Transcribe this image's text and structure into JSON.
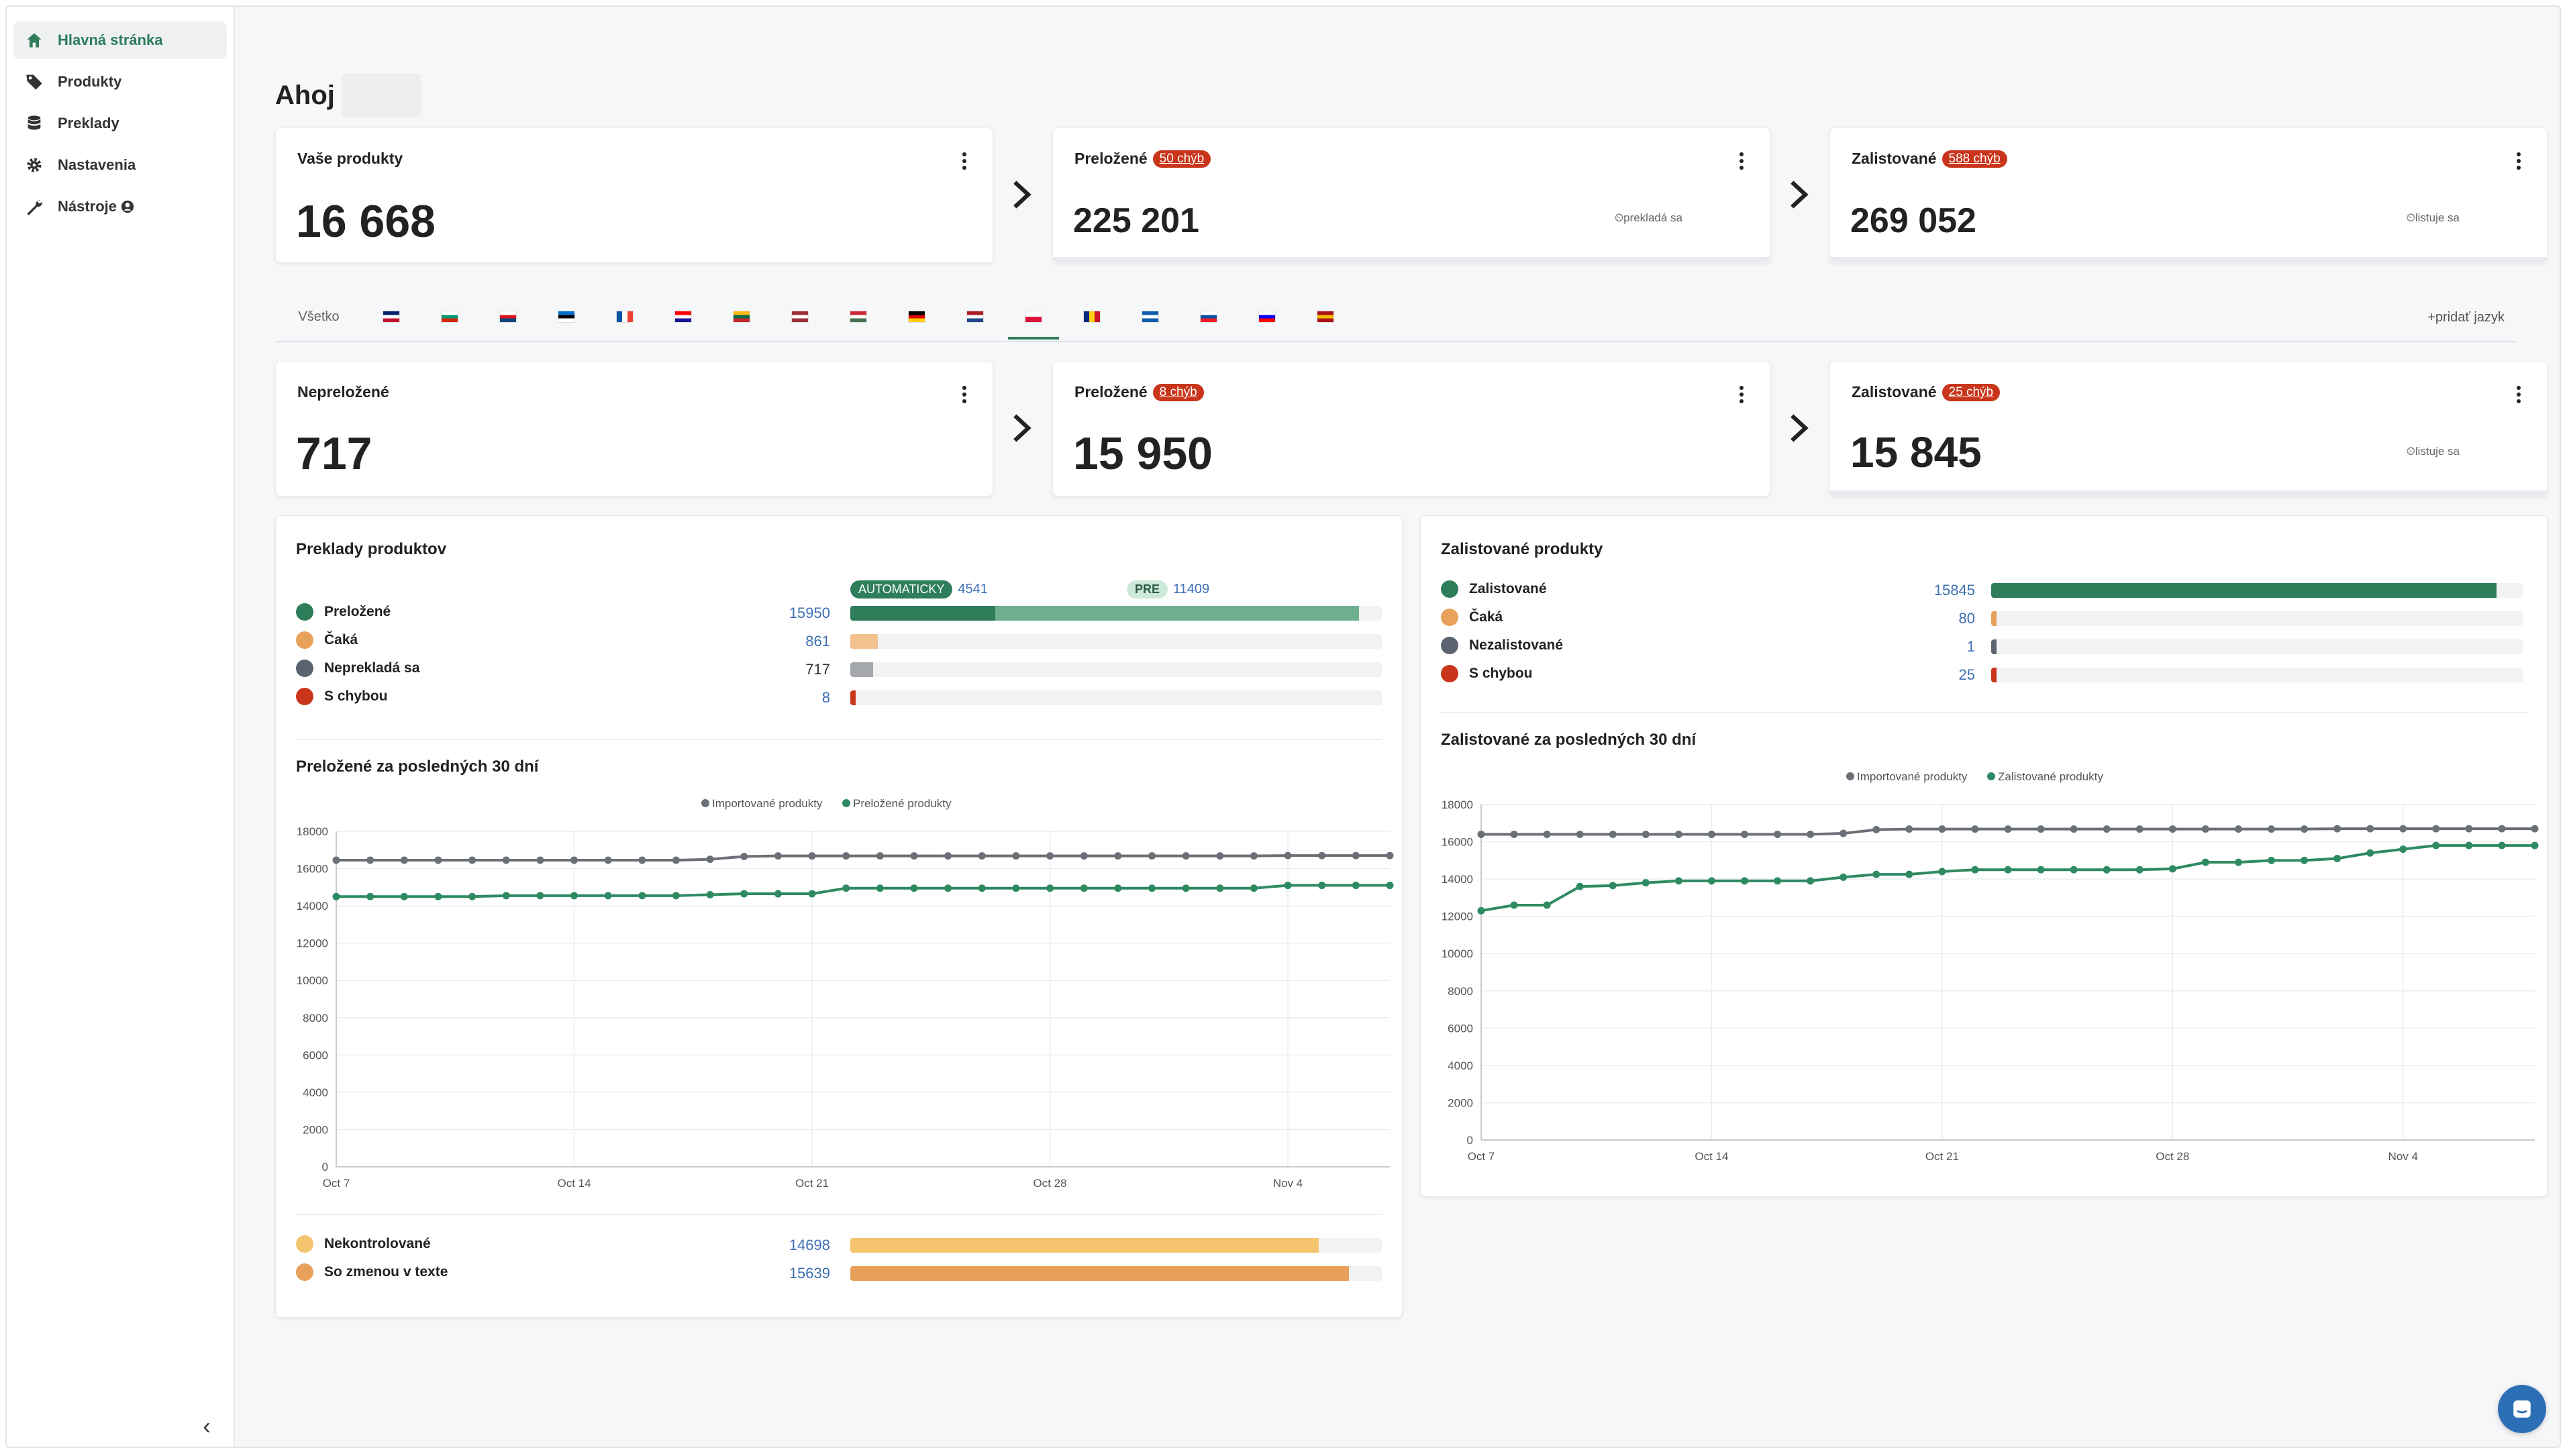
{
  "sidebar": {
    "items": [
      {
        "label": "Hlavná stránka",
        "icon": "home-icon",
        "active": true
      },
      {
        "label": "Produkty",
        "icon": "tag-icon"
      },
      {
        "label": "Preklady",
        "icon": "database-icon"
      },
      {
        "label": "Nastavenia",
        "icon": "gear-icon"
      },
      {
        "label": "Nástroje",
        "icon": "wrench-icon"
      }
    ],
    "collapse_label": "‹"
  },
  "greeting": "Ahoj",
  "top_cards": {
    "products": {
      "title": "Vaše produkty",
      "value": "16 668"
    },
    "translated": {
      "title": "Preložené",
      "badge": "50 chýb",
      "value": "225 201",
      "status": "prekladá sa"
    },
    "listed": {
      "title": "Zalistované",
      "badge": "588 chýb",
      "value": "269 052",
      "status": "listuje sa"
    }
  },
  "lang_tabs": {
    "all_label": "Všetko",
    "flags": [
      "gb",
      "bg",
      "cz",
      "ee",
      "fr",
      "hr",
      "lt",
      "lv",
      "hu",
      "de",
      "nl",
      "pl",
      "ro",
      "gr",
      "sk",
      "si",
      "es"
    ],
    "active": "pl",
    "add_label": "+pridať jazyk"
  },
  "lang_cards": {
    "untranslated": {
      "title": "Nepreložené",
      "value": "717"
    },
    "translated": {
      "title": "Preložené",
      "badge": "8 chýb",
      "value": "15 950"
    },
    "listed": {
      "title": "Zalistované",
      "badge": "25 chýb",
      "value": "15 845",
      "status": "listuje sa"
    }
  },
  "translations_panel": {
    "title": "Preklady produktov",
    "auto_label": "AUTOMATICKY",
    "auto_value": "4541",
    "pre_label": "PRE",
    "pre_value": "11409",
    "rows": [
      {
        "label": "Preložené",
        "value": "15950",
        "color": "#2e7d5b"
      },
      {
        "label": "Čaká",
        "value": "861",
        "color": "#e8a15a"
      },
      {
        "label": "Neprekladá sa",
        "value": "717",
        "color": "#5c6370"
      },
      {
        "label": "S chybou",
        "value": "8",
        "color": "#c9351b"
      }
    ],
    "chart_title": "Preložené za posledných 30 dní",
    "bottom_rows": [
      {
        "label": "Nekontrolované",
        "value": "14698",
        "color": "#f5c46e"
      },
      {
        "label": "So zmenou v texte",
        "value": "15639",
        "color": "#e8a15a"
      }
    ]
  },
  "listed_panel": {
    "title": "Zalistované produkty",
    "rows": [
      {
        "label": "Zalistované",
        "value": "15845",
        "color": "#2e7d5b"
      },
      {
        "label": "Čaká",
        "value": "80",
        "color": "#e8a15a"
      },
      {
        "label": "Nezalistované",
        "value": "1",
        "color": "#5c6370"
      },
      {
        "label": "S chybou",
        "value": "25",
        "color": "#c9351b"
      }
    ],
    "chart_title": "Zalistované za posledných 30 dní"
  },
  "chart_data": [
    {
      "type": "line",
      "title": "Preložené za posledných 30 dní",
      "x_ticks": [
        "Oct 7",
        "Oct 14",
        "Oct 21",
        "Oct 28",
        "Nov 4"
      ],
      "y_ticks": [
        0,
        2000,
        4000,
        6000,
        8000,
        10000,
        12000,
        14000,
        16000,
        18000
      ],
      "ylim": [
        0,
        18000
      ],
      "series": [
        {
          "name": "Importované produkty",
          "color": "#6b6f76",
          "values": [
            16450,
            16450,
            16450,
            16450,
            16450,
            16450,
            16450,
            16450,
            16450,
            16450,
            16450,
            16500,
            16650,
            16680,
            16680,
            16680,
            16680,
            16680,
            16680,
            16680,
            16680,
            16680,
            16680,
            16680,
            16680,
            16680,
            16680,
            16680,
            16700,
            16700,
            16700,
            16700
          ]
        },
        {
          "name": "Preložené produkty",
          "color": "#2e8a62",
          "values": [
            14500,
            14500,
            14500,
            14500,
            14500,
            14550,
            14550,
            14550,
            14550,
            14550,
            14550,
            14600,
            14650,
            14650,
            14650,
            14950,
            14950,
            14950,
            14950,
            14950,
            14950,
            14950,
            14950,
            14950,
            14950,
            14950,
            14950,
            14950,
            15100,
            15100,
            15100,
            15100
          ]
        }
      ]
    },
    {
      "type": "line",
      "title": "Zalistované za posledných 30 dní",
      "x_ticks": [
        "Oct 7",
        "Oct 14",
        "Oct 21",
        "Oct 28",
        "Nov 4"
      ],
      "y_ticks": [
        0,
        2000,
        4000,
        6000,
        8000,
        10000,
        12000,
        14000,
        16000,
        18000
      ],
      "ylim": [
        0,
        18000
      ],
      "series": [
        {
          "name": "Importované produkty",
          "color": "#6b6f76",
          "values": [
            16400,
            16400,
            16400,
            16400,
            16400,
            16400,
            16400,
            16400,
            16400,
            16400,
            16400,
            16450,
            16650,
            16680,
            16680,
            16680,
            16680,
            16680,
            16680,
            16680,
            16680,
            16680,
            16680,
            16680,
            16680,
            16680,
            16700,
            16700,
            16700,
            16700,
            16700,
            16700,
            16700
          ]
        },
        {
          "name": "Zalistované produkty",
          "color": "#2e8a62",
          "values": [
            12300,
            12600,
            12600,
            13600,
            13650,
            13800,
            13900,
            13900,
            13900,
            13900,
            13900,
            14100,
            14250,
            14250,
            14400,
            14500,
            14500,
            14500,
            14500,
            14500,
            14500,
            14550,
            14900,
            14900,
            15000,
            15000,
            15100,
            15400,
            15600,
            15800,
            15800,
            15800,
            15800
          ]
        }
      ]
    }
  ]
}
